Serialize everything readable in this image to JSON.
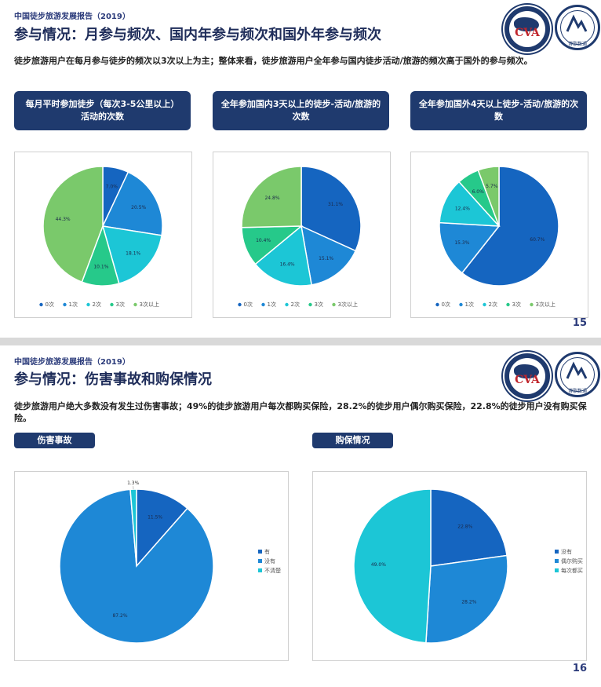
{
  "slide1": {
    "report_label": "中国徒步旅游发展报告（2019）",
    "title": "参与情况：月参与频次、国内年参与频次和国外年参与频次",
    "summary": "徒步旅游用户在每月参与徒步的频次以3次以上为主；整体来看，徒步旅游用户全年参与国内徒步活动/旅游的频次高于国外的参与频次。",
    "page_number": "15",
    "pills": [
      "每月平时参加徒步（每次3-5公里以上）活动的次数",
      "全年参加国内3天以上的徒步-活动/旅游的次数",
      "全年参加国外4天以上徒步-活动/旅游的次数"
    ]
  },
  "slide2": {
    "report_label": "中国徒步旅游发展报告（2019）",
    "title": "参与情况：伤害事故和购保情况",
    "summary": "徒步旅游用户绝大多数没有发生过伤害事故；49%的徒步旅游用户每次都购买保险，28.2%的徒步用户偶尔购买保险，22.8%的徒步用户没有购买保险。",
    "page_number": "16",
    "pills": [
      "伤害事故",
      "购保情况"
    ]
  },
  "logos": {
    "cva_text": "CVA",
    "cva_sub": "",
    "hz_mark": "",
    "hz_sub": "博歌数通"
  },
  "colors": {
    "navy": "#1f3a6e",
    "blue_dark": "#1565c0",
    "blue": "#1e88d6",
    "cyan": "#1cc6d6",
    "teal_green": "#26c98a",
    "green": "#7ac96b"
  },
  "chart_data": [
    {
      "type": "pie",
      "title": "",
      "labels": [
        "0次",
        "1次",
        "2次",
        "3次",
        "3次以上"
      ],
      "values": [
        7.0,
        20.5,
        18.1,
        10.1,
        44.3
      ],
      "value_labels": [
        "7.0%",
        "20.5%",
        "18.1%",
        "10.1%",
        "44.3%"
      ],
      "colors": [
        "#1565c0",
        "#1e88d6",
        "#1cc6d6",
        "#26c98a",
        "#7ac96b"
      ],
      "legend": "bottom"
    },
    {
      "type": "pie",
      "title": "",
      "labels": [
        "0次",
        "1次",
        "2次",
        "3次",
        "3次以上"
      ],
      "values": [
        31.1,
        15.1,
        16.4,
        10.4,
        24.8
      ],
      "value_labels": [
        "31.1%",
        "15.1%",
        "16.4%",
        "10.4%",
        "24.8%"
      ],
      "colors": [
        "#1565c0",
        "#1e88d6",
        "#1cc6d6",
        "#26c98a",
        "#7ac96b"
      ],
      "legend": "bottom"
    },
    {
      "type": "pie",
      "title": "",
      "labels": [
        "0次",
        "1次",
        "2次",
        "3次",
        "3次以上"
      ],
      "values": [
        60.7,
        15.3,
        12.4,
        6.0,
        5.7
      ],
      "value_labels": [
        "60.7%",
        "15.3%",
        "12.4%",
        "6.0%",
        "5.7%"
      ],
      "colors": [
        "#1565c0",
        "#1e88d6",
        "#1cc6d6",
        "#26c98a",
        "#7ac96b"
      ],
      "legend": "bottom"
    },
    {
      "type": "pie",
      "title": "",
      "labels": [
        "有",
        "没有",
        "不清楚"
      ],
      "values": [
        11.5,
        87.2,
        1.3
      ],
      "value_labels": [
        "11.5%",
        "87.2%",
        "1.3%"
      ],
      "colors": [
        "#1565c0",
        "#1e88d6",
        "#1cc6d6"
      ],
      "legend": "right"
    },
    {
      "type": "pie",
      "title": "",
      "labels": [
        "没有",
        "偶尔购买",
        "每次都买"
      ],
      "values": [
        22.8,
        28.2,
        49.0
      ],
      "value_labels": [
        "22.8%",
        "28.2%",
        "49.0%"
      ],
      "colors": [
        "#1565c0",
        "#1e88d6",
        "#1cc6d6"
      ],
      "legend": "right"
    }
  ]
}
